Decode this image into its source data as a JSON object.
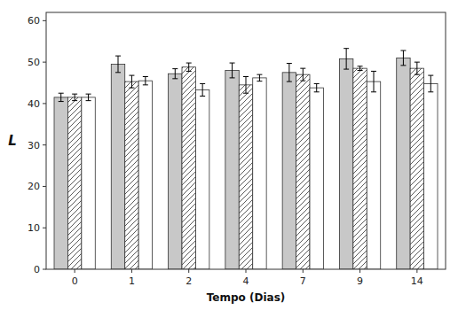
{
  "chart_data": {
    "type": "bar",
    "categories": [
      "0",
      "1",
      "2",
      "4",
      "7",
      "9",
      "14"
    ],
    "series": [
      {
        "color": "#c8c8c8",
        "values": [
          41.5,
          49.5,
          47.2,
          48.0,
          47.5,
          50.8,
          51.0
        ],
        "errors": [
          1.0,
          2.0,
          1.2,
          1.8,
          2.2,
          2.5,
          1.8
        ]
      },
      {
        "color": "white",
        "values": [
          41.5,
          45.3,
          48.8,
          44.5,
          47.0,
          48.5,
          48.5
        ],
        "errors": [
          0.8,
          1.5,
          1.0,
          2.0,
          1.5,
          0.5,
          1.5
        ]
      },
      {
        "color": "white",
        "values": [
          41.5,
          45.5,
          43.3,
          46.2,
          43.8,
          45.3,
          44.8
        ],
        "errors": [
          0.8,
          1.0,
          1.5,
          0.8,
          1.0,
          2.5,
          2.0
        ]
      }
    ],
    "xlabel": "Tempo (Dias)",
    "ylabel": "L",
    "ylim": [
      0,
      62
    ],
    "yticks": [
      0,
      10,
      20,
      30,
      40,
      50,
      60
    ],
    "grid": false
  }
}
